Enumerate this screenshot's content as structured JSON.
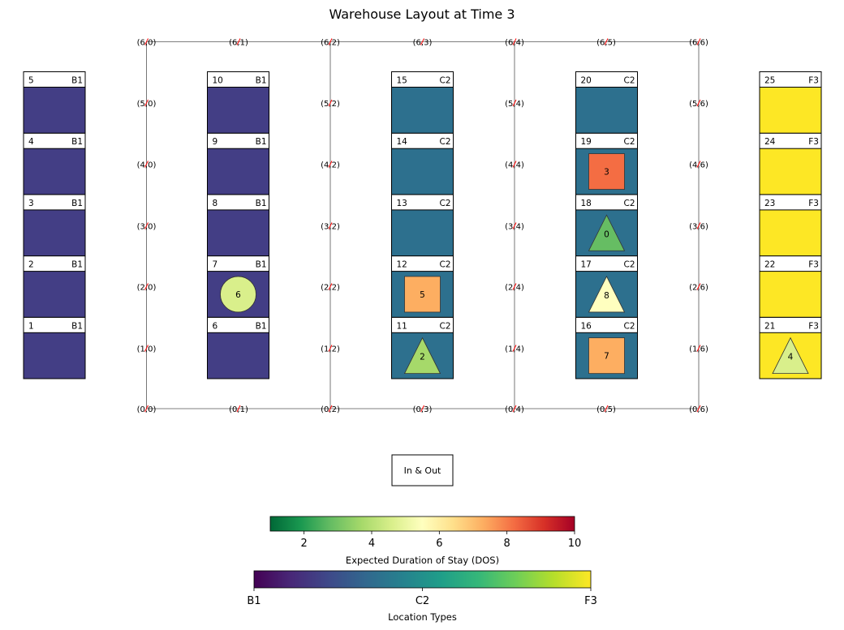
{
  "title": "Warehouse Layout at Time 3",
  "colors": {
    "B1": "#433e85",
    "C2": "#2d708e",
    "F3": "#fde725",
    "aisle_marker": "#ff0000",
    "line": "#555555"
  },
  "grid": {
    "rows": [
      0,
      1,
      2,
      3,
      4,
      5,
      6
    ],
    "cols": [
      0,
      1,
      2,
      3,
      4,
      5,
      6
    ],
    "label_format": "(r,c)"
  },
  "locations": [
    {
      "id": "1",
      "type": "B1",
      "col": 0,
      "row": 0
    },
    {
      "id": "2",
      "type": "B1",
      "col": 0,
      "row": 1
    },
    {
      "id": "3",
      "type": "B1",
      "col": 0,
      "row": 2
    },
    {
      "id": "4",
      "type": "B1",
      "col": 0,
      "row": 3
    },
    {
      "id": "5",
      "type": "B1",
      "col": 0,
      "row": 4
    },
    {
      "id": "6",
      "type": "B1",
      "col": 1,
      "row": 0
    },
    {
      "id": "7",
      "type": "B1",
      "col": 1,
      "row": 1
    },
    {
      "id": "8",
      "type": "B1",
      "col": 1,
      "row": 2
    },
    {
      "id": "9",
      "type": "B1",
      "col": 1,
      "row": 3
    },
    {
      "id": "10",
      "type": "B1",
      "col": 1,
      "row": 4
    },
    {
      "id": "11",
      "type": "C2",
      "col": 2,
      "row": 0
    },
    {
      "id": "12",
      "type": "C2",
      "col": 2,
      "row": 1
    },
    {
      "id": "13",
      "type": "C2",
      "col": 2,
      "row": 2
    },
    {
      "id": "14",
      "type": "C2",
      "col": 2,
      "row": 3
    },
    {
      "id": "15",
      "type": "C2",
      "col": 2,
      "row": 4
    },
    {
      "id": "16",
      "type": "C2",
      "col": 3,
      "row": 0
    },
    {
      "id": "17",
      "type": "C2",
      "col": 3,
      "row": 1
    },
    {
      "id": "18",
      "type": "C2",
      "col": 3,
      "row": 2
    },
    {
      "id": "19",
      "type": "C2",
      "col": 3,
      "row": 3
    },
    {
      "id": "20",
      "type": "C2",
      "col": 3,
      "row": 4
    },
    {
      "id": "21",
      "type": "F3",
      "col": 4,
      "row": 0
    },
    {
      "id": "22",
      "type": "F3",
      "col": 4,
      "row": 1
    },
    {
      "id": "23",
      "type": "F3",
      "col": 4,
      "row": 2
    },
    {
      "id": "24",
      "type": "F3",
      "col": 4,
      "row": 3
    },
    {
      "id": "25",
      "type": "F3",
      "col": 4,
      "row": 4
    }
  ],
  "items": [
    {
      "label": "6",
      "shape": "circle",
      "location": "7",
      "dos": 4.6,
      "color": "#d9ef8b"
    },
    {
      "label": "2",
      "shape": "triangle",
      "location": "11",
      "dos": 3.0,
      "color": "#a6d96a"
    },
    {
      "label": "5",
      "shape": "square",
      "location": "12",
      "dos": 7.3,
      "color": "#fdae61"
    },
    {
      "label": "7",
      "shape": "square",
      "location": "16",
      "dos": 7.3,
      "color": "#fdae61"
    },
    {
      "label": "8",
      "shape": "triangle",
      "location": "17",
      "dos": 5.6,
      "color": "#ffffbf"
    },
    {
      "label": "0",
      "shape": "triangle",
      "location": "18",
      "dos": 2.7,
      "color": "#66bd63"
    },
    {
      "label": "3",
      "shape": "square",
      "location": "19",
      "dos": 8.6,
      "color": "#f46d43"
    },
    {
      "label": "4",
      "shape": "triangle",
      "location": "21",
      "dos": 4.4,
      "color": "#d9ef8b"
    }
  ],
  "in_out": {
    "label": "In & Out"
  },
  "colorbar_dos": {
    "label": "Expected Duration of Stay (DOS)",
    "min": 1,
    "max": 10,
    "ticks": [
      "2",
      "4",
      "6",
      "8",
      "10"
    ],
    "tick_values": [
      2,
      4,
      6,
      8,
      10
    ],
    "stops": [
      "#006837",
      "#1a9850",
      "#66bd63",
      "#a6d96a",
      "#d9ef8b",
      "#ffffbf",
      "#fee08b",
      "#fdae61",
      "#f46d43",
      "#d73027",
      "#a50026"
    ]
  },
  "colorbar_types": {
    "label": "Location Types",
    "ticks": [
      "B1",
      "C2",
      "F3"
    ],
    "stops": [
      "#440154",
      "#482878",
      "#3e4989",
      "#31688e",
      "#26828e",
      "#1f9e89",
      "#35b779",
      "#6ece58",
      "#b5de2b",
      "#fde725"
    ]
  }
}
